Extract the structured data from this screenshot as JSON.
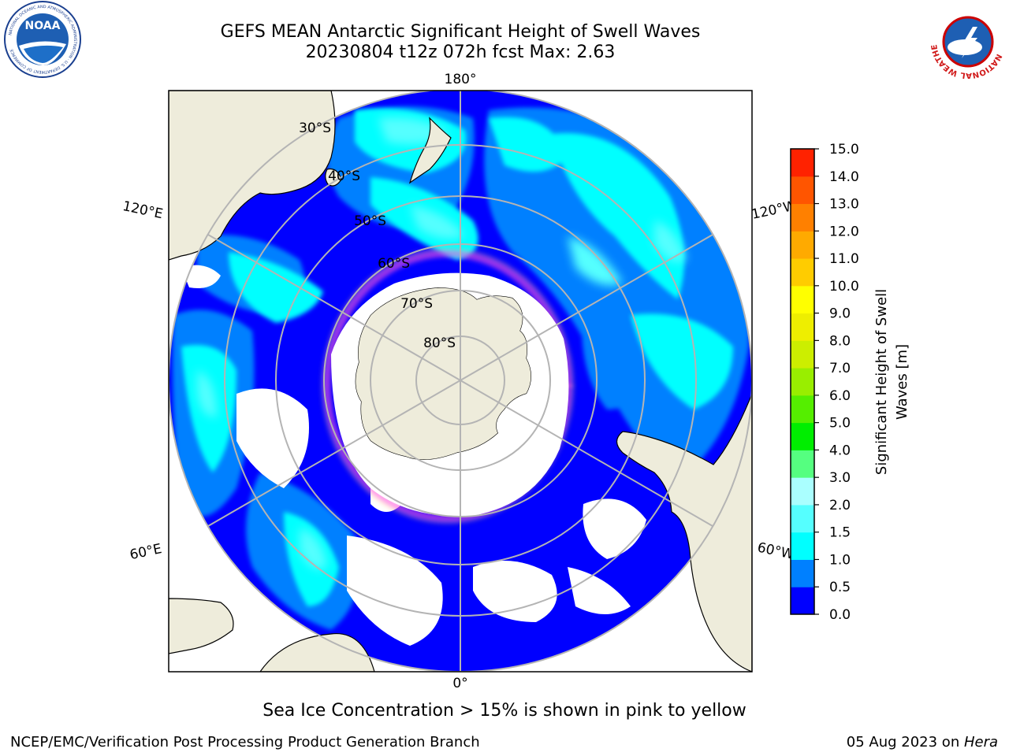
{
  "header": {
    "title_line1": "GEFS MEAN Antarctic Significant Height of Swell Waves",
    "title_line2": "20230804 t12z 072h fcst   Max: 2.63"
  },
  "logos": {
    "noaa": {
      "text": "NOAA",
      "ring_text": "NATIONAL OCEANIC AND ATMOSPHERIC ADMINISTRATION · U.S. DEPARTMENT OF COMMERCE"
    },
    "nws": {
      "ring_text": "NATIONAL WEATHER SERVICE"
    }
  },
  "map": {
    "projection": "south-polar-stereographic",
    "longitude_labels": {
      "top": "180°",
      "bottom": "0°",
      "left_upper": "120°E",
      "left_lower": "60°E",
      "right_upper": "120°W",
      "right_lower": "60°W"
    },
    "latitude_labels": [
      "30°S",
      "40°S",
      "50°S",
      "60°S",
      "70°S",
      "80°S"
    ],
    "colors": {
      "land": "#eeecdb",
      "deep_blue": "#0000ff",
      "medium_blue": "#0080ff",
      "cyan": "#00ffff",
      "light_cyan": "#55fefe",
      "sea_ice_pink": "#ff55dd",
      "sea_ice_yellow": "#ffcc00",
      "grid": "#b4b4b4"
    }
  },
  "colorbar": {
    "label_line1": "Significant Height of Swell",
    "label_line2": "Waves [m]",
    "ticks": [
      "0.0",
      "0.5",
      "1.0",
      "1.5",
      "2.0",
      "3.0",
      "4.0",
      "5.0",
      "6.0",
      "7.0",
      "8.0",
      "9.0",
      "10.0",
      "11.0",
      "12.0",
      "13.0",
      "14.0",
      "15.0"
    ],
    "colors": [
      "#0000ff",
      "#0080ff",
      "#00ffff",
      "#55ffff",
      "#aaffff",
      "#55ff80",
      "#00ee00",
      "#55ee00",
      "#99ee00",
      "#ccee00",
      "#eeee00",
      "#ffff00",
      "#ffcc00",
      "#ffaa00",
      "#ff8000",
      "#ff5500",
      "#ff2200"
    ]
  },
  "subtitle": "Sea Ice Concentration > 15% is shown in pink to yellow",
  "footer": {
    "left": "NCEP/EMC/Verification Post Processing Product Generation Branch",
    "right_prefix": "05 Aug 2023 on ",
    "right_italic": "Hera"
  }
}
